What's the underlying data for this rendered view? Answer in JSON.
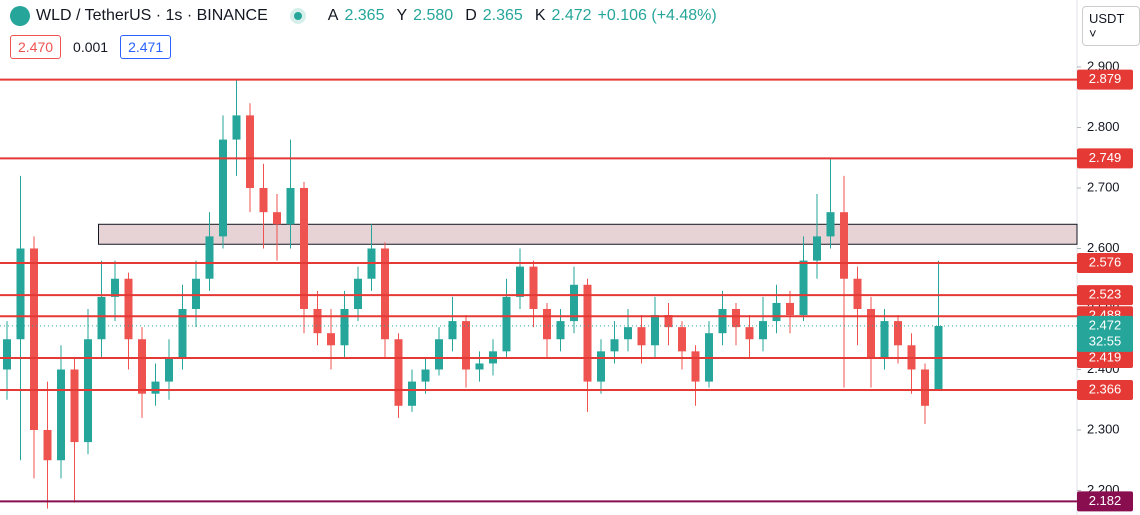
{
  "header": {
    "title": "WLD / TetherUS · 1s · BINANCE",
    "o_label": "A",
    "o": "2.365",
    "h_label": "Y",
    "h": "2.580",
    "l_label": "D",
    "l": "2.365",
    "c_label": "K",
    "c": "2.472",
    "change": "+0.106 (+4.48%)"
  },
  "buttons": {
    "sell": "2.470",
    "spread": "0.001",
    "buy": "2.471"
  },
  "currency": "USDT",
  "chart_data": {
    "type": "candlestick",
    "up_color": "#26a69a",
    "down_color": "#ef5350",
    "ylim": [
      2.1595,
      3.0107
    ],
    "yticks": [
      {
        "value": 2.2,
        "label": "2.200"
      },
      {
        "value": 2.3,
        "label": "2.300"
      },
      {
        "value": 2.4,
        "label": "2.400"
      },
      {
        "value": 2.5,
        "label": "2.500"
      },
      {
        "value": 2.6,
        "label": "2.600"
      },
      {
        "value": 2.7,
        "label": "2.700"
      },
      {
        "value": 2.8,
        "label": "2.800"
      },
      {
        "value": 2.9,
        "label": "2.900"
      }
    ],
    "ohlc": [
      [
        2.4,
        2.48,
        2.35,
        2.45
      ],
      [
        2.45,
        2.72,
        2.25,
        2.6
      ],
      [
        2.6,
        2.62,
        2.22,
        2.3
      ],
      [
        2.3,
        2.38,
        2.17,
        2.25
      ],
      [
        2.25,
        2.44,
        2.22,
        2.4
      ],
      [
        2.4,
        2.42,
        2.18,
        2.28
      ],
      [
        2.28,
        2.5,
        2.26,
        2.45
      ],
      [
        2.45,
        2.58,
        2.42,
        2.52
      ],
      [
        2.52,
        2.58,
        2.48,
        2.55
      ],
      [
        2.55,
        2.56,
        2.4,
        2.45
      ],
      [
        2.45,
        2.47,
        2.32,
        2.36
      ],
      [
        2.36,
        2.41,
        2.34,
        2.38
      ],
      [
        2.38,
        2.45,
        2.35,
        2.42
      ],
      [
        2.42,
        2.54,
        2.4,
        2.5
      ],
      [
        2.5,
        2.58,
        2.47,
        2.55
      ],
      [
        2.55,
        2.66,
        2.53,
        2.62
      ],
      [
        2.62,
        2.82,
        2.6,
        2.78
      ],
      [
        2.78,
        2.88,
        2.72,
        2.82
      ],
      [
        2.82,
        2.84,
        2.66,
        2.7
      ],
      [
        2.7,
        2.74,
        2.6,
        2.66
      ],
      [
        2.66,
        2.69,
        2.58,
        2.64
      ],
      [
        2.64,
        2.78,
        2.6,
        2.7
      ],
      [
        2.7,
        2.71,
        2.46,
        2.5
      ],
      [
        2.5,
        2.53,
        2.44,
        2.46
      ],
      [
        2.46,
        2.5,
        2.4,
        2.44
      ],
      [
        2.44,
        2.53,
        2.42,
        2.5
      ],
      [
        2.5,
        2.57,
        2.48,
        2.55
      ],
      [
        2.55,
        2.64,
        2.53,
        2.6
      ],
      [
        2.6,
        2.61,
        2.42,
        2.45
      ],
      [
        2.45,
        2.46,
        2.32,
        2.34
      ],
      [
        2.34,
        2.4,
        2.33,
        2.38
      ],
      [
        2.38,
        2.42,
        2.36,
        2.4
      ],
      [
        2.4,
        2.47,
        2.39,
        2.45
      ],
      [
        2.45,
        2.52,
        2.43,
        2.48
      ],
      [
        2.48,
        2.49,
        2.37,
        2.4
      ],
      [
        2.4,
        2.43,
        2.38,
        2.41
      ],
      [
        2.41,
        2.45,
        2.39,
        2.43
      ],
      [
        2.43,
        2.55,
        2.42,
        2.52
      ],
      [
        2.52,
        2.6,
        2.5,
        2.57
      ],
      [
        2.57,
        2.58,
        2.47,
        2.5
      ],
      [
        2.5,
        2.51,
        2.42,
        2.45
      ],
      [
        2.45,
        2.5,
        2.43,
        2.48
      ],
      [
        2.48,
        2.57,
        2.46,
        2.54
      ],
      [
        2.54,
        2.55,
        2.33,
        2.38
      ],
      [
        2.38,
        2.45,
        2.36,
        2.43
      ],
      [
        2.43,
        2.48,
        2.41,
        2.45
      ],
      [
        2.45,
        2.5,
        2.43,
        2.47
      ],
      [
        2.47,
        2.49,
        2.41,
        2.44
      ],
      [
        2.44,
        2.52,
        2.42,
        2.49
      ],
      [
        2.49,
        2.51,
        2.44,
        2.47
      ],
      [
        2.47,
        2.48,
        2.4,
        2.43
      ],
      [
        2.43,
        2.44,
        2.34,
        2.38
      ],
      [
        2.38,
        2.48,
        2.37,
        2.46
      ],
      [
        2.46,
        2.53,
        2.44,
        2.5
      ],
      [
        2.5,
        2.51,
        2.44,
        2.47
      ],
      [
        2.47,
        2.49,
        2.42,
        2.45
      ],
      [
        2.45,
        2.52,
        2.43,
        2.48
      ],
      [
        2.48,
        2.54,
        2.46,
        2.51
      ],
      [
        2.51,
        2.53,
        2.46,
        2.49
      ],
      [
        2.49,
        2.62,
        2.48,
        2.58
      ],
      [
        2.58,
        2.69,
        2.55,
        2.62
      ],
      [
        2.62,
        2.75,
        2.6,
        2.66
      ],
      [
        2.66,
        2.72,
        2.37,
        2.55
      ],
      [
        2.55,
        2.57,
        2.44,
        2.5
      ],
      [
        2.5,
        2.52,
        2.37,
        2.42
      ],
      [
        2.42,
        2.5,
        2.4,
        2.48
      ],
      [
        2.48,
        2.49,
        2.41,
        2.44
      ],
      [
        2.44,
        2.46,
        2.36,
        2.4
      ],
      [
        2.4,
        2.41,
        2.31,
        2.34
      ],
      [
        2.365,
        2.58,
        2.365,
        2.472
      ]
    ],
    "levels": [
      {
        "value": 2.879,
        "color": "#e53935"
      },
      {
        "value": 2.749,
        "color": "#e53935"
      },
      {
        "value": 2.576,
        "color": "#e53935"
      },
      {
        "value": 2.523,
        "color": "#e53935"
      },
      {
        "value": 2.488,
        "color": "#e53935"
      },
      {
        "value": 2.419,
        "color": "#e53935"
      },
      {
        "value": 2.366,
        "color": "#e53935"
      },
      {
        "value": 2.182,
        "color": "#880e4f"
      }
    ],
    "zone": {
      "start": 7,
      "top": 2.64,
      "bottom": 2.607
    },
    "last_price": {
      "value": 2.472,
      "countdown": "32:55",
      "color": "#26a69a"
    }
  }
}
